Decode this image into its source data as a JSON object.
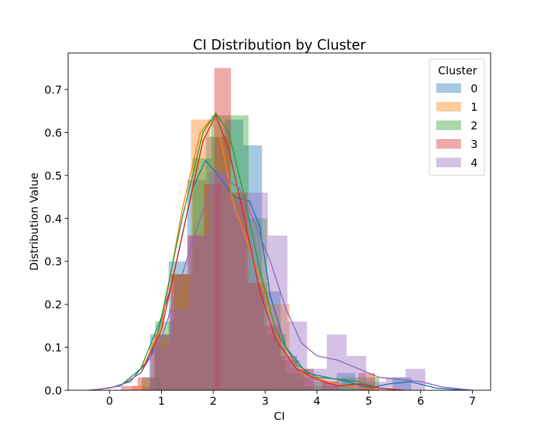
{
  "chart_data": {
    "type": "histogram",
    "title": "CI Distribution by Cluster",
    "xlabel": "CI",
    "ylabel": "Distribution Value",
    "xlim": [
      -0.8,
      7.35
    ],
    "ylim": [
      0,
      0.785
    ],
    "xticks": [
      0,
      1,
      2,
      3,
      4,
      5,
      6,
      7
    ],
    "yticks": [
      0.0,
      0.1,
      0.2,
      0.3,
      0.4,
      0.5,
      0.6,
      0.7
    ],
    "grid": false,
    "legend": {
      "title": "Cluster",
      "placement": "top-right"
    },
    "series": [
      {
        "name": "0",
        "color": "#1f77b4",
        "bin_width": 0.36,
        "bins": [
          {
            "x0": 0.78,
            "h": 0.13
          },
          {
            "x0": 1.14,
            "h": 0.3
          },
          {
            "x0": 1.5,
            "h": 0.49
          },
          {
            "x0": 1.86,
            "h": 0.59
          },
          {
            "x0": 2.22,
            "h": 0.63
          },
          {
            "x0": 2.58,
            "h": 0.57
          },
          {
            "x0": 2.94,
            "h": 0.23
          },
          {
            "x0": 3.3,
            "h": 0.07
          },
          {
            "x0": 3.66,
            "h": 0.03
          },
          {
            "x0": 4.02,
            "h": 0.02
          },
          {
            "x0": 4.38,
            "h": 0.04
          },
          {
            "x0": 4.74,
            "h": 0.01
          },
          {
            "x0": 5.1,
            "h": 0.0
          },
          {
            "x0": 5.46,
            "h": 0.03
          }
        ],
        "kde": [
          [
            -0.4,
            0.0
          ],
          [
            0.0,
            0.005
          ],
          [
            0.4,
            0.02
          ],
          [
            0.8,
            0.08
          ],
          [
            1.2,
            0.25
          ],
          [
            1.6,
            0.47
          ],
          [
            1.85,
            0.535
          ],
          [
            2.1,
            0.5
          ],
          [
            2.4,
            0.45
          ],
          [
            2.7,
            0.44
          ],
          [
            2.9,
            0.38
          ],
          [
            3.1,
            0.22
          ],
          [
            3.4,
            0.1
          ],
          [
            3.8,
            0.04
          ],
          [
            4.2,
            0.03
          ],
          [
            4.6,
            0.02
          ],
          [
            5.0,
            0.005
          ],
          [
            5.4,
            0.015
          ],
          [
            5.8,
            0.02
          ],
          [
            6.3,
            0.005
          ],
          [
            6.9,
            0.0
          ]
        ]
      },
      {
        "name": "1",
        "color": "#ff7f0e",
        "bin_width": 0.38,
        "bins": [
          {
            "x0": 0.43,
            "h": 0.01
          },
          {
            "x0": 0.81,
            "h": 0.11
          },
          {
            "x0": 1.19,
            "h": 0.27
          },
          {
            "x0": 1.57,
            "h": 0.63
          },
          {
            "x0": 1.95,
            "h": 0.59
          },
          {
            "x0": 2.33,
            "h": 0.44
          },
          {
            "x0": 2.71,
            "h": 0.25
          },
          {
            "x0": 3.09,
            "h": 0.2
          },
          {
            "x0": 3.47,
            "h": 0.05
          },
          {
            "x0": 3.85,
            "h": 0.02
          },
          {
            "x0": 4.23,
            "h": 0.01
          },
          {
            "x0": 4.61,
            "h": 0.01
          }
        ],
        "kde": [
          [
            -0.3,
            0.0
          ],
          [
            0.2,
            0.01
          ],
          [
            0.6,
            0.04
          ],
          [
            1.0,
            0.15
          ],
          [
            1.4,
            0.42
          ],
          [
            1.75,
            0.6
          ],
          [
            1.95,
            0.63
          ],
          [
            2.15,
            0.58
          ],
          [
            2.4,
            0.43
          ],
          [
            2.7,
            0.33
          ],
          [
            3.0,
            0.22
          ],
          [
            3.3,
            0.1
          ],
          [
            3.7,
            0.04
          ],
          [
            4.2,
            0.02
          ],
          [
            4.6,
            0.01
          ],
          [
            5.2,
            0.0
          ]
        ]
      },
      {
        "name": "2",
        "color": "#2ca02c",
        "bin_width": 0.36,
        "bins": [
          {
            "x0": 0.62,
            "h": 0.03
          },
          {
            "x0": 0.88,
            "h": 0.16
          },
          {
            "x0": 1.24,
            "h": 0.27
          },
          {
            "x0": 1.6,
            "h": 0.54
          },
          {
            "x0": 1.96,
            "h": 0.64
          },
          {
            "x0": 2.32,
            "h": 0.64
          },
          {
            "x0": 2.68,
            "h": 0.4
          },
          {
            "x0": 3.04,
            "h": 0.13
          },
          {
            "x0": 3.4,
            "h": 0.04
          },
          {
            "x0": 3.76,
            "h": 0.01
          },
          {
            "x0": 4.12,
            "h": 0.01
          },
          {
            "x0": 4.48,
            "h": 0.03
          },
          {
            "x0": 4.84,
            "h": 0.03
          }
        ],
        "kde": [
          [
            -0.3,
            0.0
          ],
          [
            0.2,
            0.01
          ],
          [
            0.6,
            0.05
          ],
          [
            1.0,
            0.17
          ],
          [
            1.4,
            0.4
          ],
          [
            1.8,
            0.6
          ],
          [
            2.05,
            0.645
          ],
          [
            2.3,
            0.6
          ],
          [
            2.6,
            0.45
          ],
          [
            2.9,
            0.28
          ],
          [
            3.2,
            0.14
          ],
          [
            3.6,
            0.06
          ],
          [
            4.0,
            0.03
          ],
          [
            4.5,
            0.025
          ],
          [
            4.8,
            0.02
          ],
          [
            5.2,
            0.005
          ],
          [
            5.6,
            0.0
          ]
        ]
      },
      {
        "name": "3",
        "color": "#d62728",
        "bin_width": 0.32,
        "bins": [
          {
            "x0": 0.22,
            "h": 0.01
          },
          {
            "x0": 0.54,
            "h": 0.03
          },
          {
            "x0": 0.86,
            "h": 0.13
          },
          {
            "x0": 1.18,
            "h": 0.27
          },
          {
            "x0": 1.5,
            "h": 0.36
          },
          {
            "x0": 1.82,
            "h": 0.48
          },
          {
            "x0": 2.02,
            "h": 0.75
          },
          {
            "x0": 2.34,
            "h": 0.46
          },
          {
            "x0": 2.66,
            "h": 0.25
          },
          {
            "x0": 2.98,
            "h": 0.15
          },
          {
            "x0": 3.3,
            "h": 0.08
          },
          {
            "x0": 3.62,
            "h": 0.05
          },
          {
            "x0": 4.1,
            "h": 0.02
          },
          {
            "x0": 4.8,
            "h": 0.04
          }
        ],
        "kde": [
          [
            -0.3,
            0.0
          ],
          [
            0.2,
            0.01
          ],
          [
            0.6,
            0.04
          ],
          [
            1.0,
            0.14
          ],
          [
            1.4,
            0.36
          ],
          [
            1.8,
            0.58
          ],
          [
            2.05,
            0.64
          ],
          [
            2.3,
            0.56
          ],
          [
            2.6,
            0.4
          ],
          [
            2.9,
            0.23
          ],
          [
            3.2,
            0.12
          ],
          [
            3.6,
            0.05
          ],
          [
            4.0,
            0.025
          ],
          [
            4.4,
            0.01
          ],
          [
            4.8,
            0.015
          ],
          [
            5.2,
            0.005
          ],
          [
            5.7,
            0.0
          ]
        ]
      },
      {
        "name": "4",
        "color": "#9467bd",
        "bin_width": 0.38,
        "bins": [
          {
            "x0": 0.77,
            "h": 0.1
          },
          {
            "x0": 1.15,
            "h": 0.19
          },
          {
            "x0": 1.53,
            "h": 0.36
          },
          {
            "x0": 1.91,
            "h": 0.51
          },
          {
            "x0": 2.29,
            "h": 0.44
          },
          {
            "x0": 2.67,
            "h": 0.46
          },
          {
            "x0": 3.05,
            "h": 0.36
          },
          {
            "x0": 3.43,
            "h": 0.16
          },
          {
            "x0": 3.81,
            "h": 0.05
          },
          {
            "x0": 4.19,
            "h": 0.13
          },
          {
            "x0": 4.57,
            "h": 0.08
          },
          {
            "x0": 4.95,
            "h": 0.02
          },
          {
            "x0": 5.33,
            "h": 0.03
          },
          {
            "x0": 5.71,
            "h": 0.05
          }
        ],
        "kde": [
          [
            -0.3,
            0.0
          ],
          [
            0.2,
            0.01
          ],
          [
            0.6,
            0.04
          ],
          [
            1.0,
            0.12
          ],
          [
            1.4,
            0.27
          ],
          [
            1.8,
            0.42
          ],
          [
            2.15,
            0.5
          ],
          [
            2.5,
            0.47
          ],
          [
            2.8,
            0.39
          ],
          [
            3.1,
            0.3
          ],
          [
            3.4,
            0.19
          ],
          [
            3.7,
            0.11
          ],
          [
            4.0,
            0.08
          ],
          [
            4.4,
            0.07
          ],
          [
            4.8,
            0.05
          ],
          [
            5.2,
            0.03
          ],
          [
            5.6,
            0.025
          ],
          [
            6.0,
            0.02
          ],
          [
            6.4,
            0.008
          ],
          [
            7.0,
            0.0
          ]
        ]
      }
    ]
  }
}
